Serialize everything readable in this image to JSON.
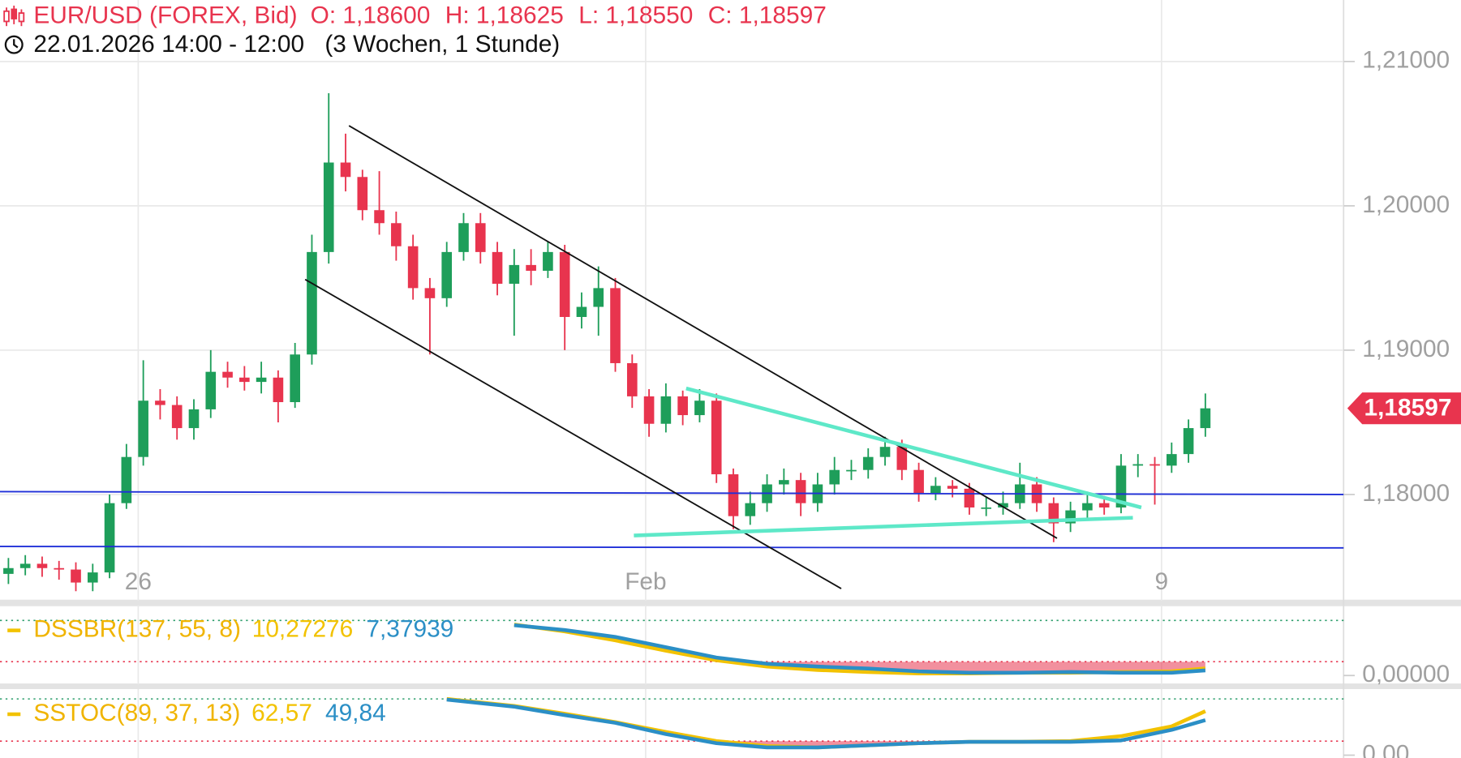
{
  "chart_data": [
    {
      "type": "candlestick",
      "title": "EUR/USD (FOREX, Bid)",
      "ohlc_labels": [
        "O: 1,18600",
        "H: 1,18625",
        "L: 1,18550",
        "C: 1,18597"
      ],
      "subtitle": "22.01.2026 14:00 - 12:00",
      "period": "(3 Wochen, 1 Stunde)",
      "open": [
        1.1745,
        1.1749,
        1.1752,
        1.1749,
        1.1748,
        1.1739,
        1.1746,
        1.1794,
        1.1826,
        1.1865,
        1.1862,
        1.1846,
        1.1859,
        1.1885,
        1.1881,
        1.1878,
        1.1881,
        1.1864,
        1.1897,
        1.1968,
        1.203,
        1.202,
        1.1997,
        1.1988,
        1.1972,
        1.1943,
        1.1936,
        1.1968,
        1.1988,
        1.1968,
        1.1946,
        1.1959,
        1.1955,
        1.1968,
        1.1923,
        1.193,
        1.1943,
        1.1891,
        1.1868,
        1.1849,
        1.1868,
        1.1855,
        1.1865,
        1.1814,
        1.1785,
        1.1794,
        1.1807,
        1.181,
        1.1794,
        1.1807,
        1.1817,
        1.1817,
        1.1826,
        1.1833,
        1.1817,
        1.1801,
        1.1806,
        1.1804,
        1.1791,
        1.1791,
        1.1794,
        1.1807,
        1.1794,
        1.178,
        1.1789,
        1.1794,
        1.1791,
        1.182,
        1.1821,
        1.182,
        1.1828,
        1.1846
      ],
      "high": [
        1.1756,
        1.1758,
        1.1757,
        1.1754,
        1.1753,
        1.1752,
        1.18,
        1.1835,
        1.1893,
        1.1873,
        1.1868,
        1.1866,
        1.19,
        1.1892,
        1.1889,
        1.1892,
        1.1886,
        1.1905,
        1.198,
        1.2078,
        1.205,
        1.2025,
        1.2024,
        1.1996,
        1.198,
        1.195,
        1.1975,
        1.1995,
        1.1995,
        1.1975,
        1.197,
        1.197,
        1.1975,
        1.1973,
        1.194,
        1.1958,
        1.195,
        1.1897,
        1.1873,
        1.1877,
        1.1872,
        1.1873,
        1.187,
        1.1818,
        1.1802,
        1.1814,
        1.1818,
        1.1815,
        1.1815,
        1.1826,
        1.1824,
        1.1832,
        1.184,
        1.1838,
        1.1822,
        1.1812,
        1.181,
        1.1808,
        1.1798,
        1.1802,
        1.1822,
        1.1812,
        1.1798,
        1.1795,
        1.1802,
        1.1799,
        1.1828,
        1.1828,
        1.1826,
        1.1836,
        1.1852,
        1.187
      ],
      "low": [
        1.1738,
        1.1744,
        1.1743,
        1.1741,
        1.1733,
        1.1733,
        1.1742,
        1.179,
        1.182,
        1.1852,
        1.1838,
        1.1838,
        1.1853,
        1.1874,
        1.1872,
        1.187,
        1.185,
        1.186,
        1.189,
        1.196,
        1.201,
        1.199,
        1.198,
        1.1962,
        1.1935,
        1.1897,
        1.193,
        1.1962,
        1.196,
        1.1938,
        1.191,
        1.1945,
        1.195,
        1.19,
        1.1915,
        1.191,
        1.1885,
        1.186,
        1.184,
        1.1843,
        1.1848,
        1.185,
        1.1808,
        1.1776,
        1.1779,
        1.1788,
        1.18,
        1.1785,
        1.1788,
        1.18,
        1.181,
        1.1811,
        1.182,
        1.181,
        1.1795,
        1.1796,
        1.1798,
        1.1786,
        1.1785,
        1.1786,
        1.179,
        1.1788,
        1.1767,
        1.1774,
        1.1784,
        1.1786,
        1.1787,
        1.1812,
        1.1793,
        1.1815,
        1.1822,
        1.184
      ],
      "close": [
        1.1749,
        1.1752,
        1.1749,
        1.1748,
        1.1739,
        1.1746,
        1.1794,
        1.1826,
        1.1865,
        1.1862,
        1.1846,
        1.1859,
        1.1885,
        1.1881,
        1.1878,
        1.1881,
        1.1864,
        1.1897,
        1.1968,
        1.203,
        1.202,
        1.1997,
        1.1988,
        1.1972,
        1.1943,
        1.1936,
        1.1968,
        1.1988,
        1.1968,
        1.1946,
        1.1959,
        1.1955,
        1.1968,
        1.1923,
        1.193,
        1.1943,
        1.1891,
        1.1868,
        1.1849,
        1.1868,
        1.1855,
        1.1865,
        1.1814,
        1.1785,
        1.1794,
        1.1807,
        1.181,
        1.1794,
        1.1807,
        1.1817,
        1.1817,
        1.1826,
        1.1833,
        1.1817,
        1.1801,
        1.1806,
        1.1804,
        1.1791,
        1.1791,
        1.1794,
        1.1807,
        1.1794,
        1.178,
        1.1789,
        1.1794,
        1.1791,
        1.182,
        1.1821,
        1.182,
        1.1828,
        1.1846,
        1.18597
      ],
      "up_color": "#1e9e5a",
      "down_color": "#e8344e",
      "xlim": [
        -0.5,
        79.2
      ],
      "xticks": [
        {
          "value": 7.7,
          "label": "26"
        },
        {
          "value": 37.8,
          "label": "Feb"
        },
        {
          "value": 68.4,
          "label": "9"
        }
      ],
      "ylim": [
        1.17297,
        1.21426
      ],
      "yticks": [
        {
          "value": 1.18,
          "label": "1,18000"
        },
        {
          "value": 1.19,
          "label": "1,19000"
        },
        {
          "value": 1.2,
          "label": "1,20000"
        },
        {
          "value": 1.21,
          "label": "1,21000"
        }
      ],
      "grid": true,
      "last_price": {
        "value": 1.18597,
        "label": "1,18597",
        "color": "#e8344e"
      },
      "lines": [
        {
          "color": "#1f2fd8",
          "points": [
            [
              -0.5,
              1.1802
            ],
            [
              79.2,
              1.18
            ]
          ]
        },
        {
          "color": "#1f2fd8",
          "points": [
            [
              -0.5,
              1.1764
            ],
            [
              66.0,
              1.1763
            ],
            [
              79.2,
              1.1763
            ]
          ]
        },
        {
          "color": "#111111",
          "points": [
            [
              20.2,
              1.20555
            ],
            [
              62.2,
              1.17697
            ]
          ]
        },
        {
          "color": "#111111",
          "points": [
            [
              17.6,
              1.1949
            ],
            [
              49.4,
              1.17348
            ]
          ]
        },
        {
          "color": "#5ee8c8",
          "points": [
            [
              40.2,
              1.18735
            ],
            [
              67.2,
              1.1791
            ]
          ]
        },
        {
          "color": "#5ee8c8",
          "points": [
            [
              37.1,
              1.17716
            ],
            [
              66.7,
              1.17839
            ]
          ]
        }
      ]
    },
    {
      "type": "line",
      "title": "DSSBR(137, 55, 8)",
      "title_color": "#f0b400",
      "x": [
        30,
        33,
        36,
        39,
        42,
        45,
        48,
        51,
        54,
        57,
        60,
        63,
        66,
        69,
        71
      ],
      "series": [
        {
          "name": "10,27276",
          "color": "#f2c200",
          "values": [
            74,
            64,
            51,
            36,
            22,
            13,
            8,
            5,
            3,
            3,
            4,
            4,
            5,
            6,
            10.27276
          ]
        },
        {
          "name": "7,37939",
          "color": "#2b8fc6",
          "values": [
            73,
            66,
            56,
            41,
            26,
            17,
            13,
            10,
            6,
            4,
            4,
            5,
            4,
            4,
            7.37939
          ]
        }
      ],
      "levels": [
        {
          "value": 80,
          "color": "#2a9d6a"
        },
        {
          "value": 20,
          "color": "#e8344e"
        }
      ],
      "xlim": [
        -0.5,
        79.2
      ],
      "ylim": [
        -13,
        102
      ],
      "yticks": [
        {
          "value": 0,
          "label": "0,00000"
        }
      ]
    },
    {
      "type": "line",
      "title": "SSTOC(89, 37, 13)",
      "title_color": "#f0b400",
      "x": [
        26,
        30,
        33,
        36,
        39,
        42,
        45,
        48,
        51,
        54,
        57,
        60,
        63,
        66,
        69,
        71
      ],
      "series": [
        {
          "name": "62,57",
          "color": "#f2c200",
          "values": [
            80,
            70,
            59,
            47,
            33,
            20,
            13,
            11,
            14,
            17,
            19,
            19,
            20,
            27,
            41,
            62.57
          ]
        },
        {
          "name": "49,84",
          "color": "#2b8fc6",
          "values": [
            79,
            69,
            57,
            46,
            30,
            17,
            11,
            11,
            14,
            17,
            19,
            19,
            19,
            21,
            36,
            49.84
          ]
        }
      ],
      "levels": [
        {
          "value": 80,
          "color": "#2a9d6a"
        },
        {
          "value": 20,
          "color": "#e8344e"
        }
      ],
      "xlim": [
        -0.5,
        79.2
      ],
      "ylim": [
        -4,
        94
      ],
      "yticks": [
        {
          "value": 0,
          "label": "0,00"
        }
      ]
    }
  ]
}
